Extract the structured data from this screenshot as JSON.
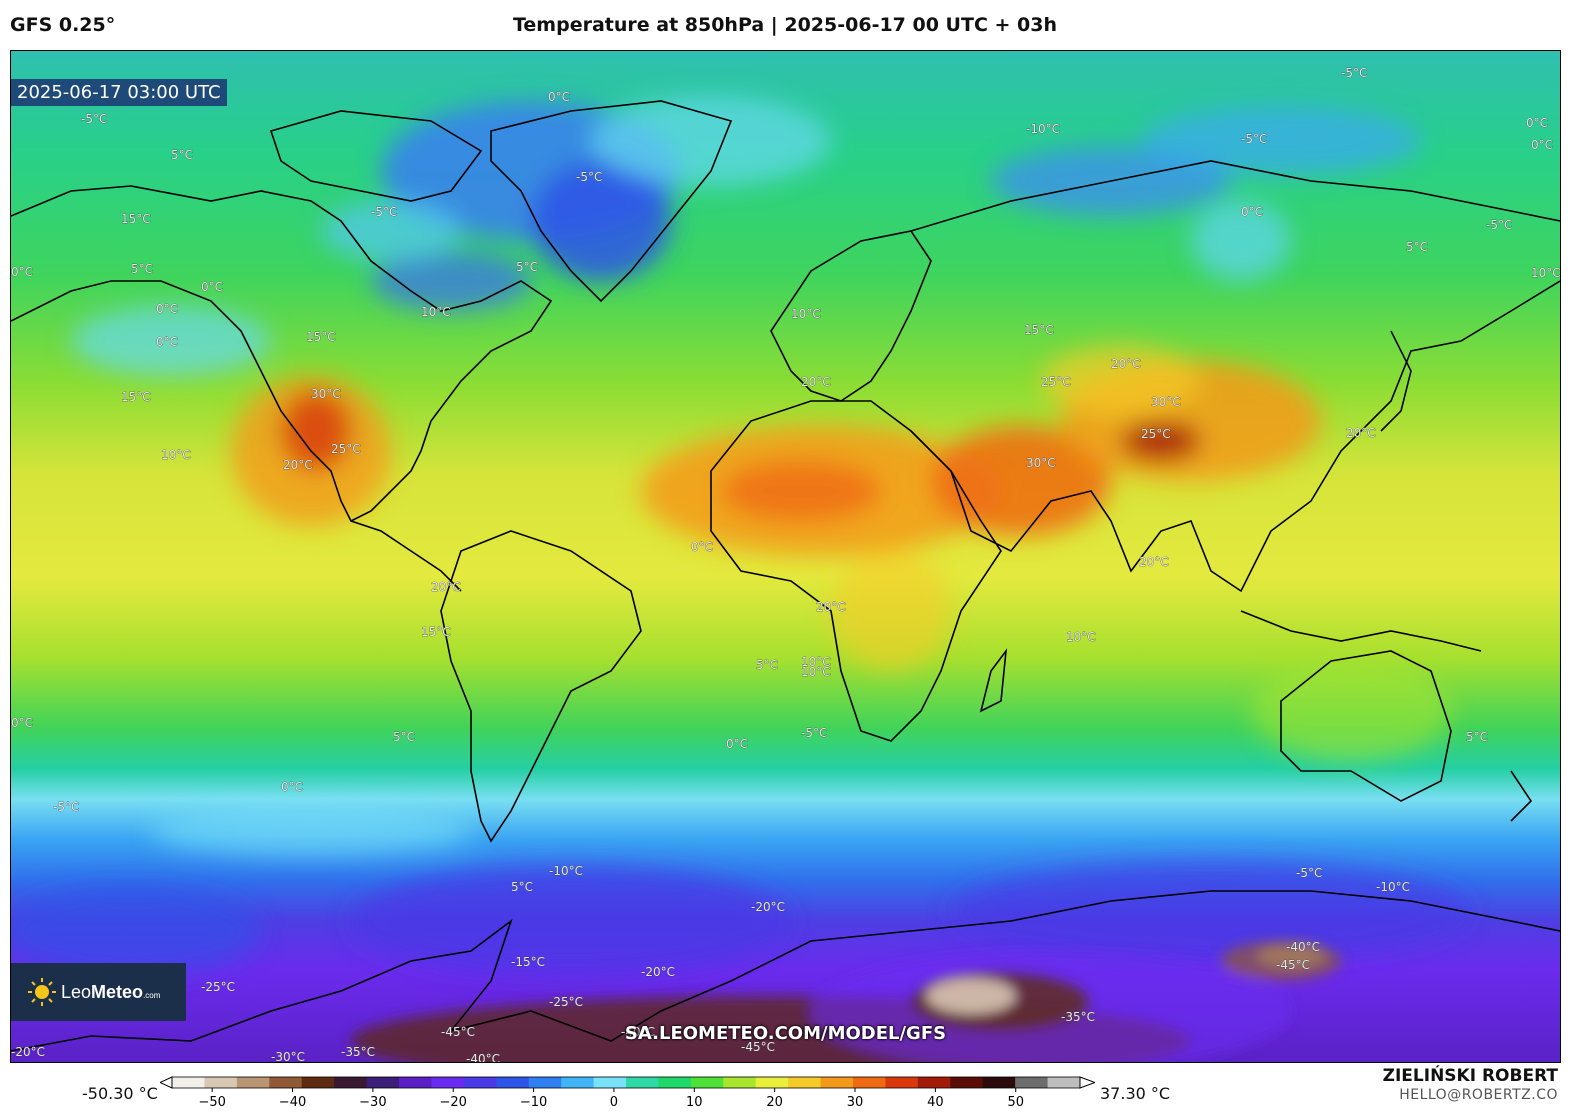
{
  "header": {
    "model": "GFS 0.25°",
    "title": "Temperature at 850hPa | 2025-06-17 00 UTC + 03h"
  },
  "map": {
    "valid_time": "2025-06-17 03:00 UTC",
    "watermark": "SA.LEOMETEO.COM/MODEL/GFS",
    "logo": {
      "name": "LeoMeteo",
      "prefix": "Leo",
      "suffix": "Meteo",
      "domain": ".com",
      "icon": "sun-icon"
    },
    "contour_labels": [
      "0°C",
      "-5°C",
      "5°C",
      "-5°C",
      "15°C",
      "5°C",
      "0°C",
      "0°C",
      "0°C",
      "0°C",
      "-5°C",
      "5°C",
      "10°C",
      "15°C",
      "30°C",
      "15°C",
      "10°C",
      "20°C",
      "25°C",
      "-10°C",
      "-5°C",
      "-5°C",
      "0°C",
      "0°C",
      "-5°C",
      "5°C",
      "10°C",
      "0°C",
      "10°C",
      "15°C",
      "20°C",
      "25°C",
      "20°C",
      "30°C",
      "25°C",
      "30°C",
      "20°C",
      "20°C",
      "20°C",
      "20°C",
      "10°C",
      "15°C",
      "5°C",
      "10°C",
      "0°C",
      "-5°C",
      "0°C",
      "5°C",
      "0°C",
      "-5°C",
      "0°C",
      "5°C",
      "-10°C",
      "-20°C",
      "-15°C",
      "-20°C",
      "-25°C",
      "-25°C",
      "-30°C",
      "-35°C",
      "-40°C",
      "-45°C",
      "-40°C",
      "-45°C",
      "-40°C",
      "-45°C",
      "-35°C",
      "-10°C",
      "-5°C",
      "-20°C",
      "-20°C",
      "5°C",
      "10°C"
    ]
  },
  "colorbar": {
    "min_label": "-50.30 °C",
    "max_label": "37.30 °C",
    "range": [
      -55,
      58
    ],
    "ticks": [
      "−50",
      "−40",
      "−30",
      "−20",
      "−10",
      "0",
      "10",
      "20",
      "30",
      "40",
      "50"
    ],
    "tick_values": [
      -50,
      -40,
      -30,
      -20,
      -10,
      0,
      10,
      20,
      30,
      40,
      50
    ],
    "colors": [
      "#f2efe9",
      "#d8c7b2",
      "#b89574",
      "#8f5a35",
      "#5e2a12",
      "#3a1830",
      "#3b1e78",
      "#5a1fc6",
      "#6a2bf0",
      "#4a39e6",
      "#2e54e8",
      "#2f7ff2",
      "#3fb4f7",
      "#79e2f8",
      "#2fd9a7",
      "#1ed86a",
      "#4ee13a",
      "#a8e62d",
      "#e8ee3a",
      "#f5cb2a",
      "#f39a1a",
      "#ef6a12",
      "#d8380c",
      "#a21a08",
      "#5a0c06",
      "#2a0a0a",
      "#6d6d6d",
      "#bdbdbd"
    ]
  },
  "author": {
    "name": "ZIELIŃSKI ROBERT",
    "email": "HELLO@ROBERTZ.CO"
  }
}
